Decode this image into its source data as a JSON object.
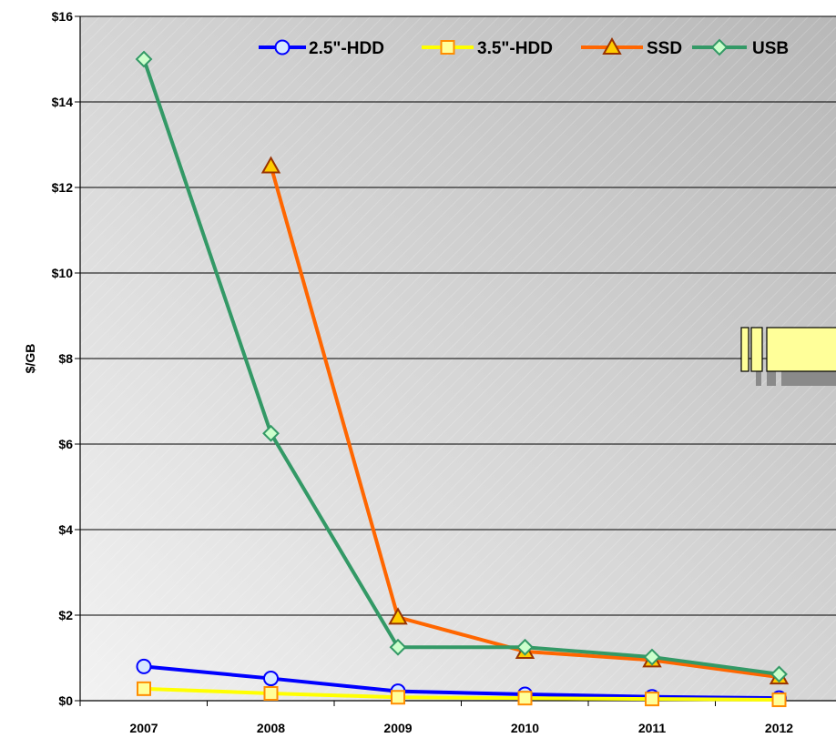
{
  "chart_data": {
    "type": "line",
    "title": "",
    "xlabel": "",
    "ylabel": "$/GB",
    "categories": [
      "2007",
      "2008",
      "2009",
      "2010",
      "2011",
      "2012"
    ],
    "ylim": [
      0,
      16
    ],
    "yticks": [
      "$0",
      "$2",
      "$4",
      "$6",
      "$8",
      "$10",
      "$12",
      "$14",
      "$16"
    ],
    "grid": true,
    "legend_position": "top-right",
    "series": [
      {
        "name": "2.5\"-HDD",
        "values": [
          0.8,
          0.52,
          0.22,
          0.15,
          0.09,
          0.06
        ],
        "color": "#0000ff",
        "marker": "circle",
        "marker_fill": "#d6e8ff",
        "marker_stroke": "#0000ff"
      },
      {
        "name": "3.5\"-HDD",
        "values": [
          0.28,
          0.17,
          0.08,
          0.06,
          0.04,
          0.02
        ],
        "color": "#ffff00",
        "marker": "square",
        "marker_fill": "#ffff99",
        "marker_stroke": "#ff8c00"
      },
      {
        "name": "SSD",
        "values": [
          null,
          12.5,
          1.95,
          1.15,
          0.95,
          0.55
        ],
        "color": "#ff6600",
        "marker": "triangle",
        "marker_fill": "#ffcc00",
        "marker_stroke": "#993300"
      },
      {
        "name": "USB",
        "values": [
          15.0,
          6.25,
          1.25,
          1.25,
          1.02,
          0.62
        ],
        "color": "#339966",
        "marker": "diamond",
        "marker_fill": "#ccffcc",
        "marker_stroke": "#339966"
      }
    ]
  },
  "colors": {
    "plot_bg_light": "#f2f2f2",
    "plot_bg_dark": "#b8b8b8",
    "gridline": "#000000",
    "usb_stick_body": "#ffff99"
  },
  "decoration": {
    "icon": "usb-drive-icon"
  }
}
